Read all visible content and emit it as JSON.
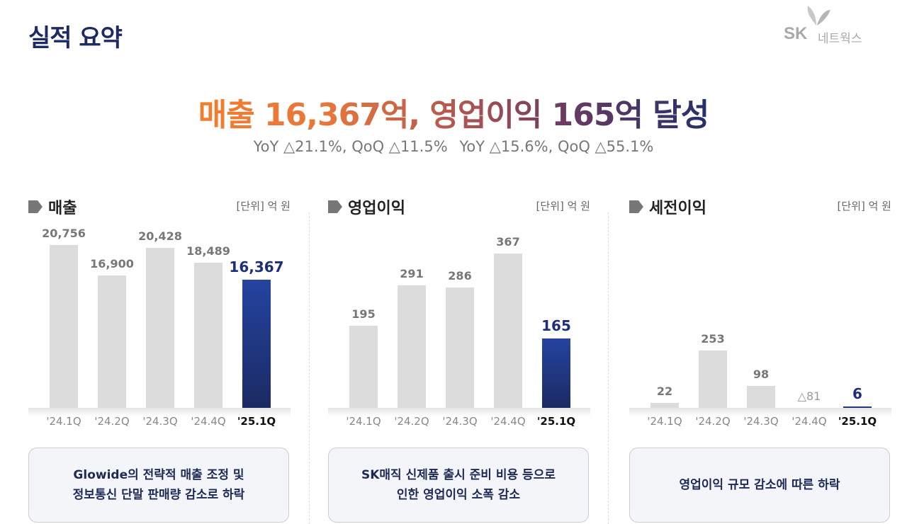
{
  "page": {
    "title": "실적 요약"
  },
  "logo": {
    "brand": "SK",
    "name": "네트웍스"
  },
  "headline": {
    "text": "매출 16,367억, 영업이익 165억 달성"
  },
  "subline": {
    "revenue_change": "YoY △21.1%, QoQ △11.5%",
    "op_change": "YoY △15.6%, QoQ △55.1%"
  },
  "colors": {
    "highlight_bar": "#1f3a8a",
    "bar": "#dcdcdc",
    "headline_start": "#f47c2c",
    "headline_end": "#24306b"
  },
  "chart_data": [
    {
      "type": "bar",
      "title": "매출",
      "unit": "[단위] 억 원",
      "categories": [
        "'24.1Q",
        "'24.2Q",
        "'24.3Q",
        "'24.4Q",
        "'25.1Q"
      ],
      "values": [
        20756,
        16900,
        20428,
        18489,
        16367
      ],
      "labels": [
        "20,756",
        "16,900",
        "20,428",
        "18,489",
        "16,367"
      ],
      "highlight": "'25.1Q",
      "note": "Glowide의 전략적 매출 조정 및\n정보통신 단말 판매량 감소로 하락"
    },
    {
      "type": "bar",
      "title": "영업이익",
      "unit": "[단위] 억 원",
      "categories": [
        "'24.1Q",
        "'24.2Q",
        "'24.3Q",
        "'24.4Q",
        "'25.1Q"
      ],
      "values": [
        195,
        291,
        286,
        367,
        165
      ],
      "labels": [
        "195",
        "291",
        "286",
        "367",
        "165"
      ],
      "highlight": "'25.1Q",
      "note": "SK매직 신제품 출시 준비 비용 등으로\n인한 영업이익 소폭 감소"
    },
    {
      "type": "bar",
      "title": "세전이익",
      "unit": "[단위] 억 원",
      "categories": [
        "'24.1Q",
        "'24.2Q",
        "'24.3Q",
        "'24.4Q",
        "'25.1Q"
      ],
      "values": [
        22,
        253,
        98,
        -81,
        6
      ],
      "labels": [
        "22",
        "253",
        "98",
        "△81",
        "6"
      ],
      "highlight": "'25.1Q",
      "note": "영업이익 규모 감소에 따른 하락"
    }
  ]
}
